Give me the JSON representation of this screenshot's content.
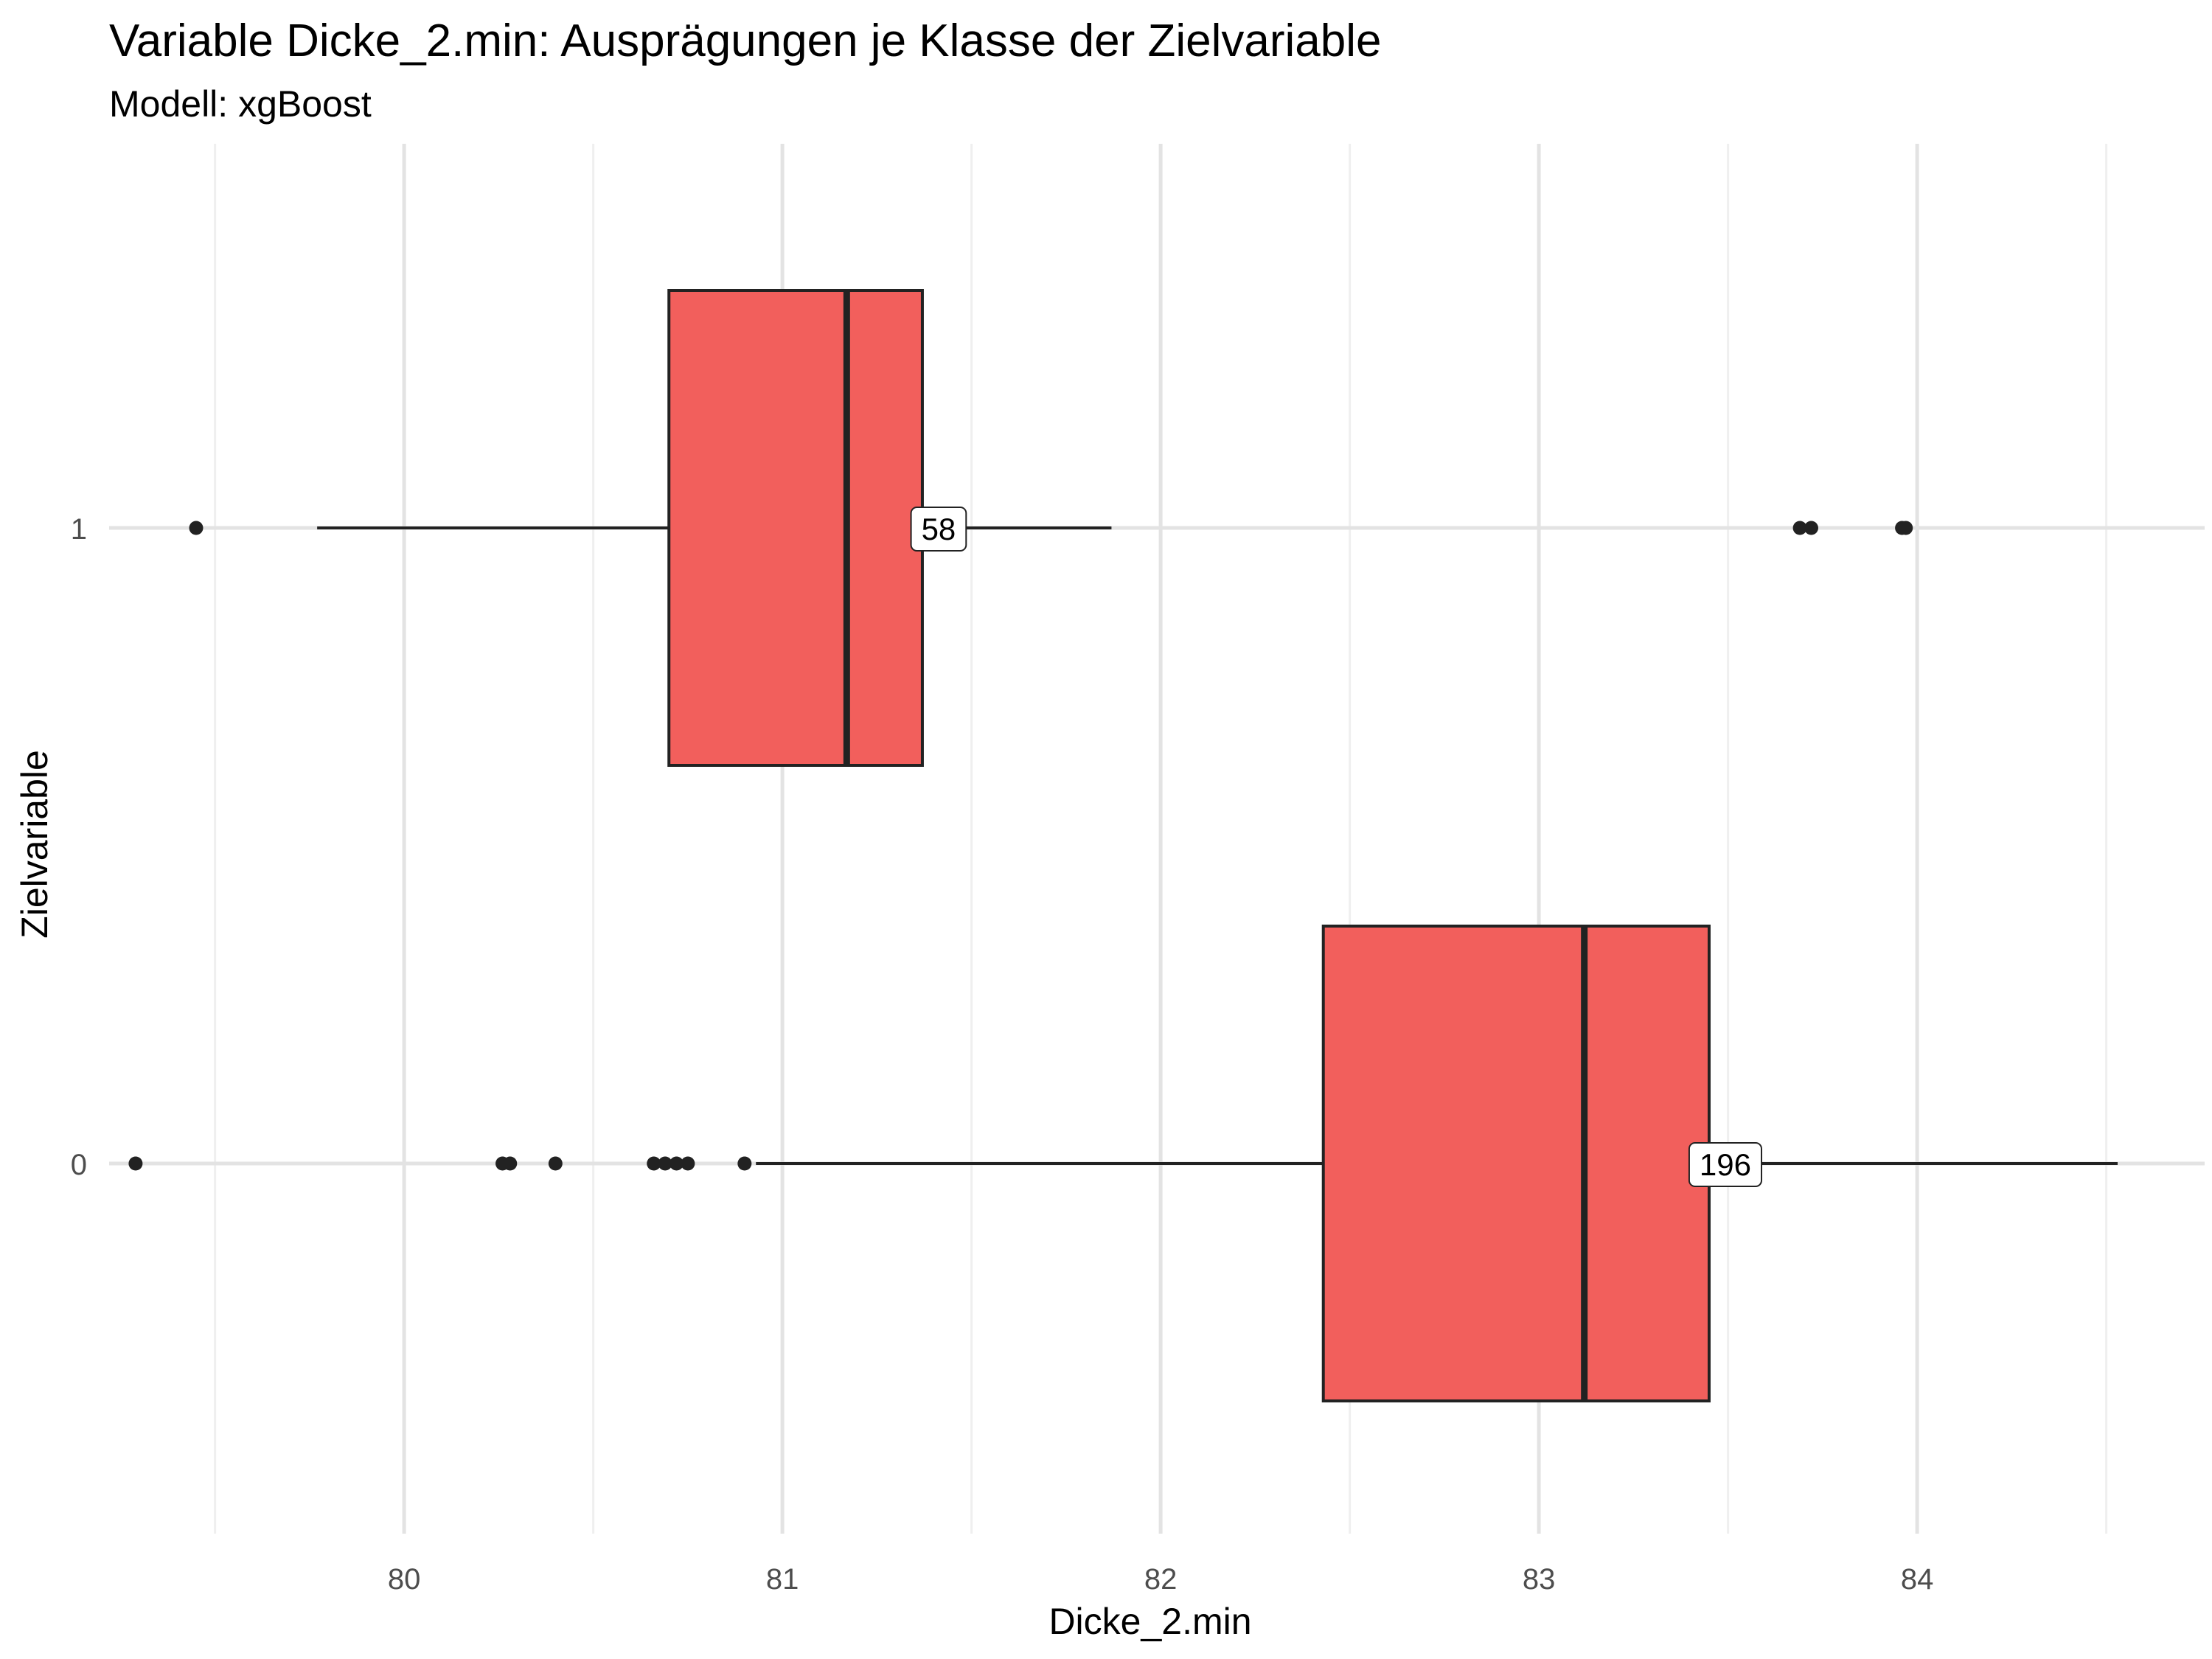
{
  "chart_data": {
    "type": "boxplot",
    "title": "Variable Dicke_2.min: Ausprägungen je Klasse der Zielvariable",
    "subtitle": "Modell: xgBoost",
    "xlabel": "Dicke_2.min",
    "ylabel": "Zielvariable",
    "xlim": [
      79.22,
      84.76
    ],
    "x_ticks": [
      80,
      81,
      82,
      83,
      84
    ],
    "grid": true,
    "legend": "none",
    "box_color": "#F25F5C",
    "categories": [
      "1",
      "0"
    ],
    "boxes": [
      {
        "category": "1",
        "n_label": "58",
        "whisker_low": 79.77,
        "q1": 80.7,
        "median": 81.17,
        "q3": 81.37,
        "whisker_high": 81.87,
        "outliers": [
          79.45,
          83.69,
          83.72,
          83.96,
          83.97
        ]
      },
      {
        "category": "0",
        "n_label": "196",
        "whisker_low": 80.93,
        "q1": 82.43,
        "median": 83.12,
        "q3": 83.45,
        "whisker_high": 84.53,
        "outliers": [
          79.29,
          80.26,
          80.28,
          80.4,
          80.66,
          80.69,
          80.72,
          80.75,
          80.9
        ]
      }
    ]
  }
}
